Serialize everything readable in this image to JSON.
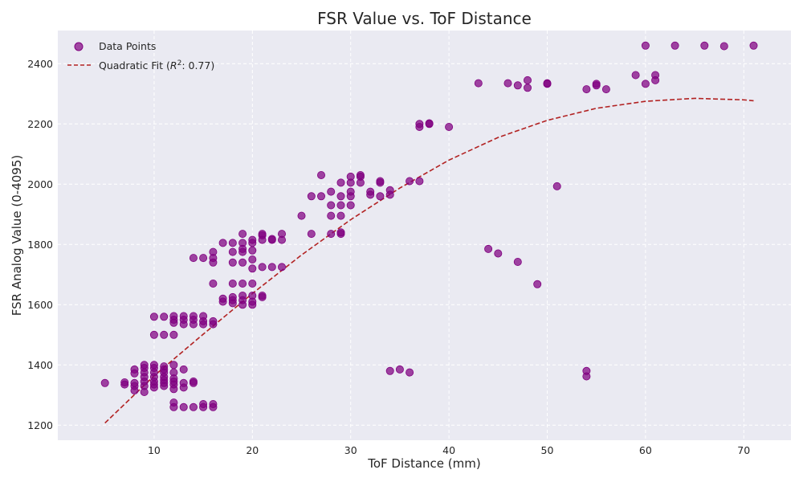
{
  "chart_data": {
    "type": "scatter",
    "title": "FSR Value vs. ToF Distance",
    "xlabel": "ToF Distance (mm)",
    "ylabel": "FSR Analog Value (0-4095)",
    "xlim": [
      0.2,
      74.8
    ],
    "ylim": [
      1150,
      2510
    ],
    "x_ticks": [
      10,
      20,
      30,
      40,
      50,
      60,
      70
    ],
    "y_ticks": [
      1200,
      1400,
      1600,
      1800,
      2000,
      2200,
      2400
    ],
    "grid": true,
    "legend_position": "top-left",
    "legend": {
      "points_label": "Data Points",
      "fit_label_prefix": "Quadratic Fit (",
      "fit_label_r2": "R",
      "fit_label_sup": "2",
      "fit_label_suffix": ": 0.77)"
    },
    "colors": {
      "points": "#800080",
      "fit_line": "#b22222",
      "plot_background": "#eaeaf2",
      "grid": "#ffffff"
    },
    "series": [
      {
        "name": "Data Points",
        "kind": "scatter",
        "points": [
          [
            5,
            1340
          ],
          [
            7,
            1335
          ],
          [
            7,
            1342
          ],
          [
            8,
            1315
          ],
          [
            8,
            1330
          ],
          [
            8,
            1340
          ],
          [
            8,
            1372
          ],
          [
            8,
            1385
          ],
          [
            9,
            1310
          ],
          [
            9,
            1330
          ],
          [
            9,
            1345
          ],
          [
            9,
            1360
          ],
          [
            9,
            1375
          ],
          [
            9,
            1390
          ],
          [
            9,
            1400
          ],
          [
            10,
            1325
          ],
          [
            10,
            1335
          ],
          [
            10,
            1345
          ],
          [
            10,
            1360
          ],
          [
            10,
            1375
          ],
          [
            10,
            1390
          ],
          [
            10,
            1400
          ],
          [
            10,
            1500
          ],
          [
            10,
            1560
          ],
          [
            11,
            1330
          ],
          [
            11,
            1340
          ],
          [
            11,
            1350
          ],
          [
            11,
            1360
          ],
          [
            11,
            1375
          ],
          [
            11,
            1385
          ],
          [
            11,
            1395
          ],
          [
            11,
            1500
          ],
          [
            11,
            1560
          ],
          [
            12,
            1260
          ],
          [
            12,
            1275
          ],
          [
            12,
            1320
          ],
          [
            12,
            1335
          ],
          [
            12,
            1345
          ],
          [
            12,
            1355
          ],
          [
            12,
            1375
          ],
          [
            12,
            1400
          ],
          [
            12,
            1500
          ],
          [
            12,
            1540
          ],
          [
            12,
            1550
          ],
          [
            12,
            1562
          ],
          [
            13,
            1260
          ],
          [
            13,
            1325
          ],
          [
            13,
            1340
          ],
          [
            13,
            1385
          ],
          [
            13,
            1535
          ],
          [
            13,
            1550
          ],
          [
            13,
            1562
          ],
          [
            14,
            1260
          ],
          [
            14,
            1340
          ],
          [
            14,
            1345
          ],
          [
            14,
            1535
          ],
          [
            14,
            1550
          ],
          [
            14,
            1562
          ],
          [
            14,
            1755
          ],
          [
            15,
            1260
          ],
          [
            15,
            1270
          ],
          [
            15,
            1535
          ],
          [
            15,
            1545
          ],
          [
            15,
            1562
          ],
          [
            15,
            1755
          ],
          [
            16,
            1260
          ],
          [
            16,
            1270
          ],
          [
            16,
            1535
          ],
          [
            16,
            1545
          ],
          [
            16,
            1670
          ],
          [
            16,
            1740
          ],
          [
            16,
            1755
          ],
          [
            16,
            1775
          ],
          [
            17,
            1610
          ],
          [
            17,
            1620
          ],
          [
            17,
            1805
          ],
          [
            18,
            1605
          ],
          [
            18,
            1615
          ],
          [
            18,
            1625
          ],
          [
            18,
            1670
          ],
          [
            18,
            1740
          ],
          [
            18,
            1775
          ],
          [
            18,
            1805
          ],
          [
            19,
            1600
          ],
          [
            19,
            1615
          ],
          [
            19,
            1630
          ],
          [
            19,
            1670
          ],
          [
            19,
            1740
          ],
          [
            19,
            1775
          ],
          [
            19,
            1785
          ],
          [
            19,
            1805
          ],
          [
            19,
            1835
          ],
          [
            20,
            1600
          ],
          [
            20,
            1610
          ],
          [
            20,
            1630
          ],
          [
            20,
            1670
          ],
          [
            20,
            1720
          ],
          [
            20,
            1750
          ],
          [
            20,
            1780
          ],
          [
            20,
            1805
          ],
          [
            20,
            1815
          ],
          [
            21,
            1625
          ],
          [
            21,
            1630
          ],
          [
            21,
            1725
          ],
          [
            21,
            1815
          ],
          [
            21,
            1830
          ],
          [
            21,
            1835
          ],
          [
            22,
            1725
          ],
          [
            22,
            1815
          ],
          [
            22,
            1818
          ],
          [
            23,
            1725
          ],
          [
            23,
            1815
          ],
          [
            23,
            1835
          ],
          [
            25,
            1895
          ],
          [
            26,
            1835
          ],
          [
            26,
            1960
          ],
          [
            27,
            1960
          ],
          [
            27,
            2030
          ],
          [
            28,
            1835
          ],
          [
            28,
            1895
          ],
          [
            28,
            1930
          ],
          [
            28,
            1975
          ],
          [
            29,
            1835
          ],
          [
            29,
            1840
          ],
          [
            29,
            1895
          ],
          [
            29,
            1930
          ],
          [
            29,
            1960
          ],
          [
            29,
            2005
          ],
          [
            30,
            1930
          ],
          [
            30,
            1960
          ],
          [
            30,
            1975
          ],
          [
            30,
            2005
          ],
          [
            30,
            2025
          ],
          [
            31,
            2005
          ],
          [
            31,
            2025
          ],
          [
            31,
            2030
          ],
          [
            32,
            1965
          ],
          [
            32,
            1975
          ],
          [
            33,
            1960
          ],
          [
            33,
            2005
          ],
          [
            33,
            2010
          ],
          [
            34,
            1965
          ],
          [
            34,
            1980
          ],
          [
            34,
            1380
          ],
          [
            35,
            1385
          ],
          [
            36,
            1375
          ],
          [
            36,
            2010
          ],
          [
            37,
            2190
          ],
          [
            37,
            2200
          ],
          [
            37,
            2010
          ],
          [
            38,
            2200
          ],
          [
            38,
            2202
          ],
          [
            40,
            2190
          ],
          [
            43,
            2335
          ],
          [
            44,
            1785
          ],
          [
            45,
            1770
          ],
          [
            46,
            2335
          ],
          [
            47,
            2328
          ],
          [
            47,
            1742
          ],
          [
            48,
            2320
          ],
          [
            48,
            2345
          ],
          [
            49,
            1668
          ],
          [
            50,
            2333
          ],
          [
            50,
            2335
          ],
          [
            51,
            1993
          ],
          [
            54,
            2315
          ],
          [
            54,
            1380
          ],
          [
            54,
            1362
          ],
          [
            55,
            2328
          ],
          [
            55,
            2333
          ],
          [
            56,
            2315
          ],
          [
            59,
            2362
          ],
          [
            60,
            2333
          ],
          [
            60,
            2460
          ],
          [
            61,
            2345
          ],
          [
            61,
            2362
          ],
          [
            63,
            2460
          ],
          [
            66,
            2460
          ],
          [
            68,
            2458
          ],
          [
            71,
            2460
          ]
        ]
      },
      {
        "name": "Quadratic Fit",
        "kind": "line",
        "x": [
          5,
          10,
          15,
          20,
          25,
          30,
          35,
          40,
          45,
          50,
          55,
          60,
          65,
          70,
          71
        ],
        "y": [
          1207,
          1364,
          1502,
          1637,
          1765,
          1882,
          1987,
          2080,
          2155,
          2212,
          2252,
          2275,
          2285,
          2280,
          2277
        ]
      }
    ]
  }
}
